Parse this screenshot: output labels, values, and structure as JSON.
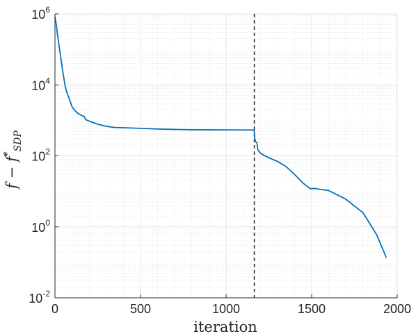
{
  "chart_data": {
    "type": "line",
    "xlabel": "iteration",
    "ylabel": "f − f*SDP",
    "ylabel_parts": {
      "main": "f − f",
      "superscript": "*",
      "subscript": "SDP"
    },
    "xscale": "linear",
    "yscale": "log",
    "xlim": [
      0,
      2000
    ],
    "ylim": [
      0.01,
      1000000
    ],
    "xticks": [
      0,
      500,
      1000,
      1500,
      2000
    ],
    "xtick_labels": [
      "0",
      "500",
      "1000",
      "1500",
      "2000"
    ],
    "yticks": [
      0.01,
      1,
      100,
      10000,
      1000000
    ],
    "ytick_labels": [
      {
        "base": "10",
        "exp": "-2"
      },
      {
        "base": "10",
        "exp": "0"
      },
      {
        "base": "10",
        "exp": "2"
      },
      {
        "base": "10",
        "exp": "4"
      },
      {
        "base": "10",
        "exp": "6"
      }
    ],
    "grid": true,
    "minor_grid": true,
    "vertical_marker": {
      "x": 1165,
      "style": "dashed",
      "color": "#333333"
    },
    "series": [
      {
        "color": "#0072BD",
        "points": [
          [
            0,
            800000
          ],
          [
            8,
            500000
          ],
          [
            15,
            250000
          ],
          [
            30,
            80000
          ],
          [
            45,
            25000
          ],
          [
            60,
            9000
          ],
          [
            70,
            6000
          ],
          [
            80,
            4500
          ],
          [
            100,
            2400
          ],
          [
            120,
            1800
          ],
          [
            140,
            1500
          ],
          [
            160,
            1350
          ],
          [
            170,
            1300
          ],
          [
            180,
            1050
          ],
          [
            200,
            950
          ],
          [
            250,
            780
          ],
          [
            300,
            680
          ],
          [
            350,
            630
          ],
          [
            400,
            620
          ],
          [
            500,
            595
          ],
          [
            600,
            570
          ],
          [
            700,
            555
          ],
          [
            800,
            545
          ],
          [
            900,
            540
          ],
          [
            1000,
            538
          ],
          [
            1100,
            535
          ],
          [
            1160,
            535
          ],
          [
            1165,
            500
          ],
          [
            1168,
            300
          ],
          [
            1172,
            250
          ],
          [
            1180,
            240
          ],
          [
            1185,
            150
          ],
          [
            1200,
            120
          ],
          [
            1220,
            105
          ],
          [
            1250,
            88
          ],
          [
            1300,
            70
          ],
          [
            1350,
            50
          ],
          [
            1400,
            30
          ],
          [
            1450,
            17
          ],
          [
            1490,
            12
          ],
          [
            1520,
            12
          ],
          [
            1600,
            10.5
          ],
          [
            1700,
            6
          ],
          [
            1800,
            2.5
          ],
          [
            1880,
            0.6
          ],
          [
            1935,
            0.14
          ]
        ]
      }
    ]
  }
}
